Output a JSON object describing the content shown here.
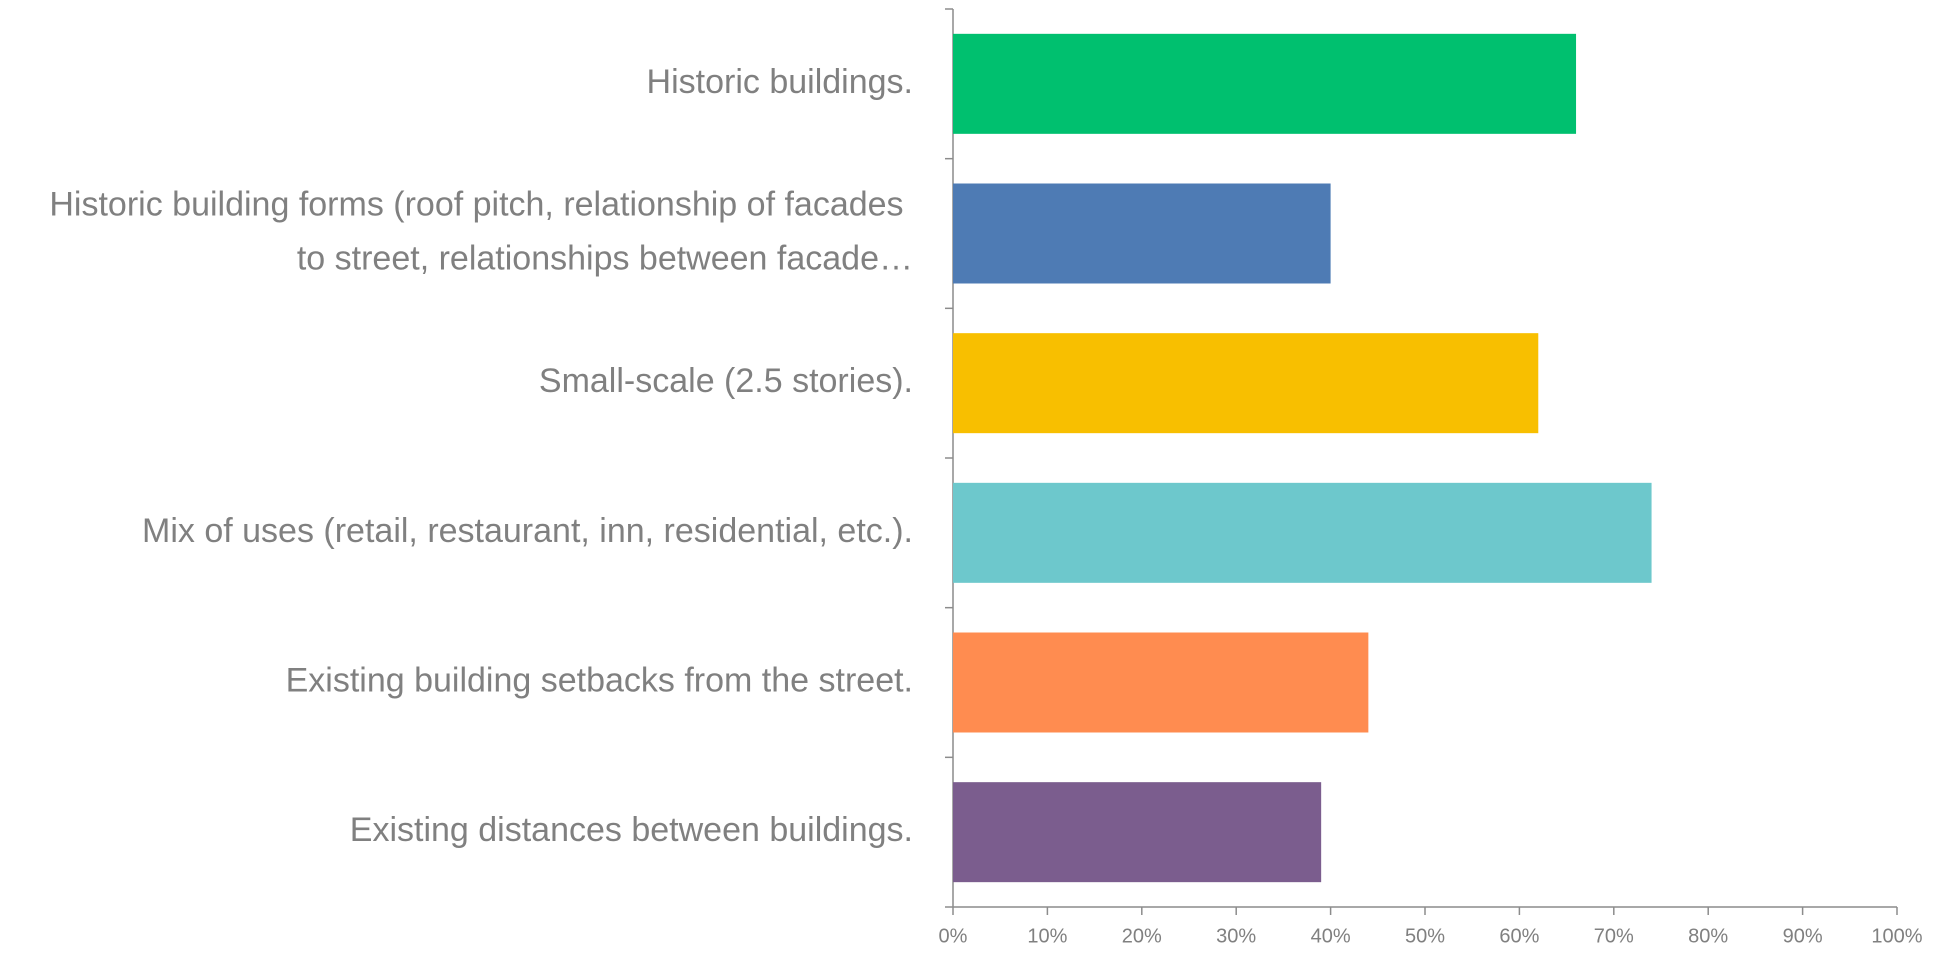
{
  "chart_data": {
    "type": "barh",
    "categories": [
      "Historic buildings.",
      "Historic building forms (roof pitch, relationship of facades to street, relationships between facade…",
      "Small-scale (2.5 stories).",
      "Mix of uses (retail, restaurant, inn, residential, etc.).",
      "Existing building setbacks from the street.",
      "Existing distances between buildings."
    ],
    "values": [
      66,
      40,
      62,
      74,
      44,
      39
    ],
    "colors": [
      "#00c06f",
      "#4e7bb4",
      "#f8bf00",
      "#6dc8cc",
      "#ff8c50",
      "#7b5d8e"
    ],
    "xlim": [
      0,
      100
    ],
    "xticks": [
      {
        "value": 0,
        "label": "0%"
      },
      {
        "value": 10,
        "label": "10%"
      },
      {
        "value": 20,
        "label": "20%"
      },
      {
        "value": 30,
        "label": "30%"
      },
      {
        "value": 40,
        "label": "40%"
      },
      {
        "value": 50,
        "label": "50%"
      },
      {
        "value": 60,
        "label": "60%"
      },
      {
        "value": 70,
        "label": "70%"
      },
      {
        "value": 80,
        "label": "80%"
      },
      {
        "value": 90,
        "label": "90%"
      },
      {
        "value": 100,
        "label": "100%"
      }
    ],
    "grid": false
  }
}
